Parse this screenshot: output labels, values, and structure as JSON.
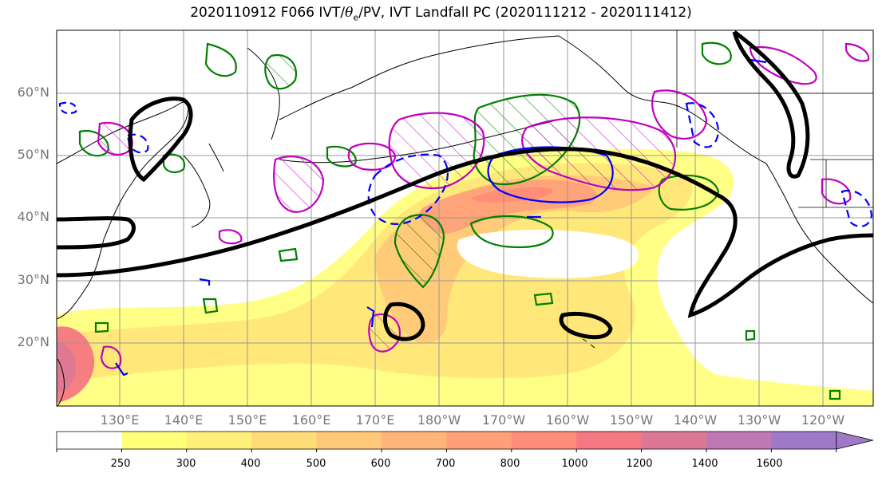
{
  "title_prefix": "2020110912 F066 IVT/",
  "title_theta": "θ",
  "title_theta_sub": "e",
  "title_suffix": "/PV, IVT Landfall PC (2020111212 - 2020111412)",
  "lat_labels": [
    "60°N",
    "50°N",
    "40°N",
    "30°N",
    "20°N"
  ],
  "lon_labels": [
    "130°E",
    "140°E",
    "150°E",
    "160°E",
    "170°E",
    "180°W",
    "170°W",
    "160°W",
    "150°W",
    "140°W",
    "130°W",
    "120°W"
  ],
  "colorbar": {
    "ticks": [
      "250",
      "300",
      "400",
      "500",
      "600",
      "700",
      "800",
      "1000",
      "1200",
      "1400",
      "1600"
    ],
    "colors": [
      "#ffffff",
      "#ffff78",
      "#fff07a",
      "#ffdc78",
      "#ffc878",
      "#ffb478",
      "#ffa078",
      "#ff8c78",
      "#f57882",
      "#dc7896",
      "#be78b4",
      "#a078c8"
    ],
    "extend": "max"
  },
  "colors": {
    "ivt_contour_black": "#000000",
    "theta_e_green": "#008000",
    "pv_magenta": "#c000c0",
    "pv_blue": "#0000ff",
    "coastline": "#000000",
    "grid": "#999999"
  }
}
